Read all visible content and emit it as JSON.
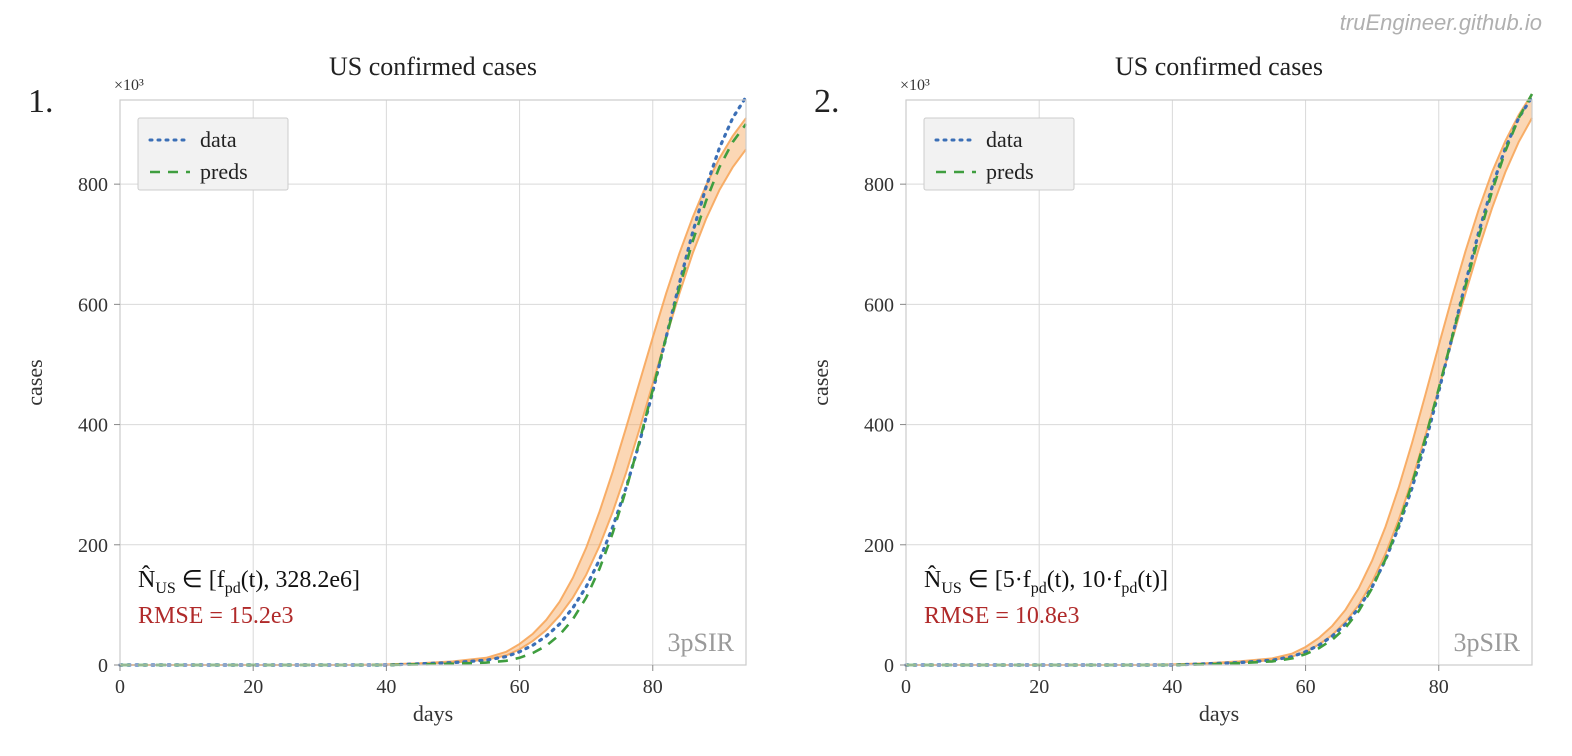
{
  "watermark": "truEngineer.github.io",
  "layout": {
    "figure_width": 1572,
    "figure_height": 756,
    "panels": 2,
    "panel_arrangement": "row",
    "background_color": "#ffffff"
  },
  "common": {
    "type": "line",
    "title": "US confirmed cases",
    "title_fontsize": 26,
    "xlabel": "days",
    "ylabel": "cases",
    "label_fontsize": 22,
    "xlim": [
      0,
      94
    ],
    "ylim": [
      0,
      940
    ],
    "xticks": [
      0,
      20,
      40,
      60,
      80
    ],
    "yticks": [
      0,
      200,
      400,
      600,
      800
    ],
    "y_scale_label": "×10³",
    "grid_color": "#d9d9d9",
    "grid_width": 1,
    "axes_border_color": "#cccccc",
    "plot_bg": "#ffffff",
    "legend": {
      "position": "upper-left",
      "bg": "#f2f2f2",
      "border": "#cccccc",
      "items": [
        {
          "label": "data",
          "color": "#3b6fb6",
          "style": "dotted",
          "width": 3
        },
        {
          "label": "preds",
          "color": "#3f9e3f",
          "style": "dashed",
          "width": 2.5
        }
      ]
    },
    "model_tag": "3pSIR",
    "model_tag_color": "#9a9a9a",
    "tick_fontsize": 20,
    "series_x": [
      0,
      5,
      10,
      15,
      20,
      25,
      30,
      35,
      40,
      45,
      50,
      55,
      58,
      60,
      62,
      64,
      66,
      68,
      70,
      72,
      74,
      76,
      78,
      80,
      82,
      84,
      86,
      88,
      90,
      92,
      94
    ],
    "data_series": {
      "label": "data",
      "color": "#3b6fb6",
      "style": "dotted",
      "width": 3.2,
      "y": [
        0,
        0,
        0,
        0,
        0,
        0,
        0,
        0,
        0,
        2,
        4,
        8,
        14,
        22,
        33,
        48,
        68,
        95,
        130,
        175,
        230,
        295,
        370,
        455,
        545,
        635,
        720,
        795,
        860,
        910,
        945
      ]
    },
    "band": {
      "color": "#f7a65a",
      "opacity": 0.45
    }
  },
  "panels": [
    {
      "number": "1.",
      "annotation_line1_prefix": "N̂",
      "annotation_line1_sub": "US",
      "annotation_line1_rest": " ∈ [f",
      "annotation_line1_sub2": "pd",
      "annotation_line1_rest2": "(t), 328.2e6]",
      "annotation_line1_color": "#111111",
      "annotation_line2": "RMSE = 15.2e3",
      "annotation_line2_color": "#b02a2a",
      "preds_series": {
        "label": "preds",
        "color": "#3f9e3f",
        "style": "dashed",
        "width": 2.6,
        "y": [
          0,
          0,
          0,
          0,
          0,
          0,
          0,
          0,
          0,
          1,
          2,
          4,
          7,
          12,
          20,
          32,
          50,
          76,
          112,
          160,
          220,
          292,
          372,
          458,
          545,
          628,
          705,
          772,
          828,
          870,
          900
        ]
      },
      "band_lower": [
        0,
        0,
        0,
        0,
        0,
        0,
        0,
        0,
        0,
        2,
        4,
        9,
        16,
        26,
        40,
        58,
        82,
        112,
        150,
        198,
        255,
        320,
        392,
        468,
        545,
        618,
        685,
        742,
        790,
        828,
        858
      ],
      "band_upper": [
        0,
        0,
        0,
        0,
        0,
        0,
        0,
        0,
        1,
        3,
        6,
        12,
        22,
        35,
        52,
        75,
        105,
        145,
        195,
        255,
        322,
        395,
        470,
        545,
        618,
        685,
        745,
        798,
        843,
        880,
        910
      ]
    },
    {
      "number": "2.",
      "annotation_line1_prefix": "N̂",
      "annotation_line1_sub": "US",
      "annotation_line1_rest": " ∈ [5·f",
      "annotation_line1_sub2": "pd",
      "annotation_line1_rest2": "(t), 10·f",
      "annotation_line1_sub3": "pd",
      "annotation_line1_rest3": "(t)]",
      "annotation_line1_color": "#111111",
      "annotation_line2": "RMSE = 10.8e3",
      "annotation_line2_color": "#b02a2a",
      "preds_series": {
        "label": "preds",
        "color": "#3f9e3f",
        "style": "dashed",
        "width": 2.6,
        "y": [
          0,
          0,
          0,
          0,
          0,
          0,
          0,
          0,
          0,
          1,
          3,
          6,
          11,
          18,
          28,
          42,
          62,
          90,
          128,
          176,
          234,
          302,
          378,
          460,
          545,
          630,
          712,
          788,
          855,
          910,
          950
        ]
      },
      "band_lower": [
        0,
        0,
        0,
        0,
        0,
        0,
        0,
        0,
        0,
        2,
        4,
        8,
        14,
        22,
        34,
        50,
        72,
        100,
        138,
        185,
        242,
        308,
        382,
        460,
        540,
        618,
        692,
        760,
        820,
        870,
        910
      ],
      "band_upper": [
        0,
        0,
        0,
        0,
        0,
        0,
        0,
        0,
        1,
        3,
        6,
        11,
        19,
        30,
        45,
        65,
        92,
        128,
        174,
        230,
        296,
        370,
        450,
        532,
        612,
        688,
        758,
        820,
        872,
        915,
        950
      ]
    }
  ]
}
